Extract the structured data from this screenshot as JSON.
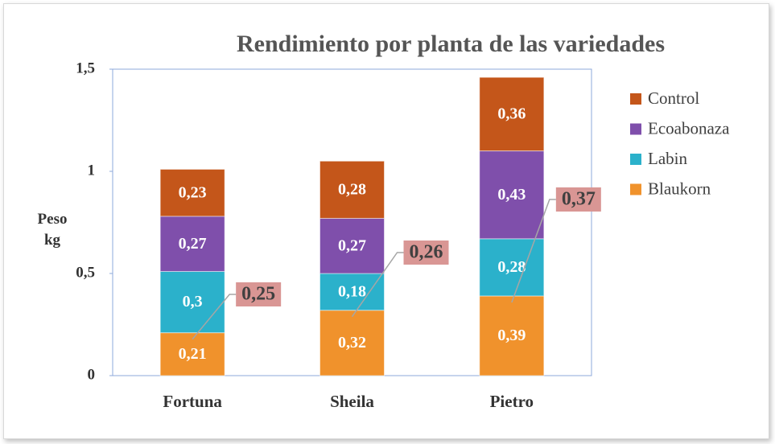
{
  "chart_data": {
    "type": "stacked_bar",
    "title": "Rendimiento por planta de las variedades",
    "ylabel": "Peso kg",
    "categories": [
      "Fortuna",
      "Sheila",
      "Pietro"
    ],
    "series": [
      {
        "name": "Blaukorn",
        "color": "#f0922c",
        "values": [
          0.21,
          0.32,
          0.39
        ],
        "value_labels": [
          "0,21",
          "0,32",
          "0,39"
        ]
      },
      {
        "name": "Labin",
        "color": "#2bb1cb",
        "values": [
          0.3,
          0.18,
          0.28
        ],
        "value_labels": [
          "0,3",
          "0,18",
          "0,28"
        ]
      },
      {
        "name": "Ecoabonaza",
        "color": "#7f4fab",
        "values": [
          0.27,
          0.27,
          0.43
        ],
        "value_labels": [
          "0,27",
          "0,27",
          "0,43"
        ]
      },
      {
        "name": "Control",
        "color": "#c4561a",
        "values": [
          0.23,
          0.28,
          0.36
        ],
        "value_labels": [
          "0,23",
          "0,28",
          "0,36"
        ]
      }
    ],
    "annotations": [
      {
        "value": 0.25,
        "label": "0,25"
      },
      {
        "value": 0.26,
        "label": "0,26"
      },
      {
        "value": 0.37,
        "label": "0,37"
      }
    ],
    "ylim": [
      0,
      1.5
    ],
    "yticks": [
      0,
      {
        "value": 0.5,
        "label": "0,5"
      },
      1,
      {
        "value": 1.5,
        "label": "1,5"
      }
    ],
    "legend": "right"
  }
}
